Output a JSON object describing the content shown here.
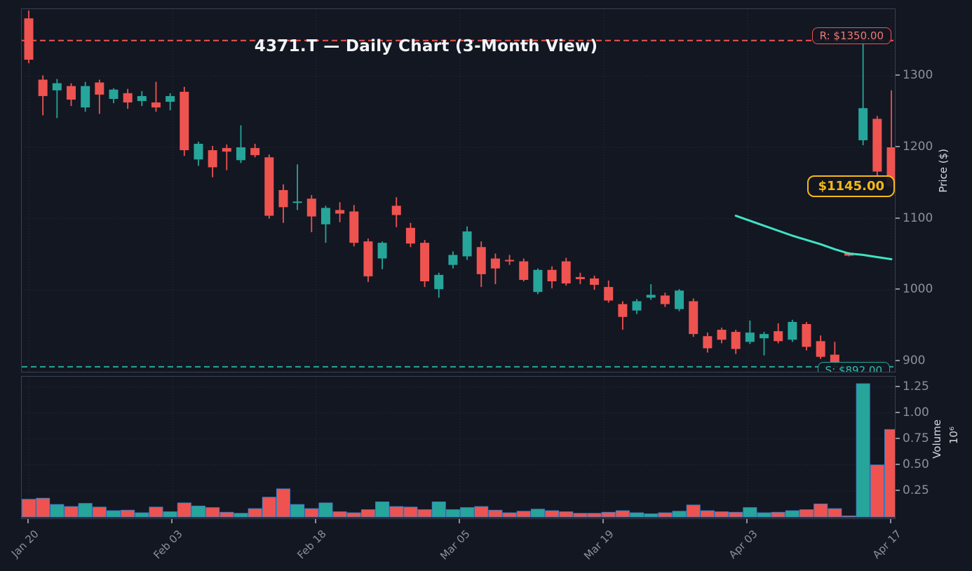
{
  "title": "4371.T — Daily Chart (3-Month View)",
  "colors": {
    "background": "#131722",
    "up_candle": "#26a69a",
    "down_candle": "#ef5350",
    "ma_line": "#3fe3c5",
    "resistance": "#ef5350",
    "support": "#26a69a",
    "last_price_accent": "#f4b916",
    "volume_bar_edge": "#3e7fc1",
    "grid": "#2a3040",
    "tick_text": "#8b9098"
  },
  "chart_data": {
    "type": "candlestick",
    "symbol": "4371.T",
    "title": "4371.T — Daily Chart (3-Month View)",
    "x_tick_labels": [
      "Jan 20",
      "Feb 03",
      "Feb 18",
      "Mar 05",
      "Mar 19",
      "Apr 03",
      "Apr 17"
    ],
    "price_axis": {
      "label": "Price ($)",
      "ticks": [
        900,
        1000,
        1100,
        1200,
        1300
      ],
      "range": [
        885,
        1394
      ]
    },
    "volume_axis": {
      "label": "Volume",
      "multiplier": "10⁶",
      "ticks": [
        0.25,
        0.5,
        0.75,
        1.0,
        1.25
      ],
      "range": [
        0,
        1.36
      ]
    },
    "resistance": {
      "label": "R: $1350.00",
      "price": 1350
    },
    "support": {
      "label": "S: $892.00",
      "price": 892
    },
    "last_price_label": {
      "text": "$1145.00",
      "price": 1145
    },
    "ma_line": {
      "start_index": 50,
      "prices": [
        1104,
        1097,
        1090,
        1083,
        1076,
        1070,
        1064,
        1057,
        1051,
        1049,
        1046,
        1043
      ]
    },
    "candle_columns": [
      "open",
      "high",
      "low",
      "close",
      "volume_millions"
    ],
    "candles": [
      [
        1381,
        1392,
        1318,
        1323,
        0.17
      ],
      [
        1295,
        1301,
        1245,
        1272,
        0.18
      ],
      [
        1280,
        1296,
        1241,
        1290,
        0.12
      ],
      [
        1286,
        1290,
        1258,
        1267,
        0.1
      ],
      [
        1256,
        1292,
        1250,
        1286,
        0.13
      ],
      [
        1291,
        1295,
        1247,
        1274,
        0.095
      ],
      [
        1268,
        1283,
        1262,
        1281,
        0.06
      ],
      [
        1276,
        1282,
        1254,
        1263,
        0.065
      ],
      [
        1265,
        1279,
        1258,
        1272,
        0.04
      ],
      [
        1263,
        1292,
        1250,
        1256,
        0.095
      ],
      [
        1264,
        1276,
        1252,
        1272,
        0.05
      ],
      [
        1278,
        1285,
        1188,
        1196,
        0.135
      ],
      [
        1183,
        1208,
        1174,
        1205,
        0.105
      ],
      [
        1196,
        1202,
        1158,
        1172,
        0.09
      ],
      [
        1199,
        1204,
        1168,
        1194,
        0.045
      ],
      [
        1182,
        1231,
        1178,
        1200,
        0.035
      ],
      [
        1199,
        1205,
        1186,
        1189,
        0.08
      ],
      [
        1186,
        1190,
        1100,
        1104,
        0.19
      ],
      [
        1140,
        1148,
        1094,
        1116,
        0.27
      ],
      [
        1122,
        1176,
        1112,
        1124,
        0.12
      ],
      [
        1128,
        1133,
        1081,
        1103,
        0.08
      ],
      [
        1092,
        1118,
        1066,
        1115,
        0.135
      ],
      [
        1112,
        1123,
        1095,
        1107,
        0.05
      ],
      [
        1110,
        1119,
        1061,
        1066,
        0.04
      ],
      [
        1068,
        1072,
        1011,
        1019,
        0.07
      ],
      [
        1044,
        1068,
        1029,
        1066,
        0.145
      ],
      [
        1118,
        1130,
        1088,
        1105,
        0.1
      ],
      [
        1087,
        1094,
        1060,
        1065,
        0.095
      ],
      [
        1066,
        1070,
        1004,
        1012,
        0.07
      ],
      [
        1001,
        1024,
        989,
        1021,
        0.145
      ],
      [
        1035,
        1054,
        1030,
        1049,
        0.07
      ],
      [
        1047,
        1089,
        1042,
        1082,
        0.09
      ],
      [
        1060,
        1068,
        1004,
        1022,
        0.1
      ],
      [
        1044,
        1051,
        1008,
        1030,
        0.065
      ],
      [
        1042,
        1049,
        1035,
        1040,
        0.04
      ],
      [
        1040,
        1044,
        1012,
        1014,
        0.055
      ],
      [
        997,
        1030,
        994,
        1028,
        0.075
      ],
      [
        1028,
        1033,
        1002,
        1012,
        0.06
      ],
      [
        1040,
        1045,
        1006,
        1009,
        0.05
      ],
      [
        1018,
        1024,
        1008,
        1015,
        0.035
      ],
      [
        1016,
        1020,
        1000,
        1007,
        0.035
      ],
      [
        1004,
        1013,
        982,
        985,
        0.045
      ],
      [
        980,
        984,
        944,
        962,
        0.06
      ],
      [
        971,
        987,
        966,
        984,
        0.04
      ],
      [
        989,
        1008,
        986,
        993,
        0.03
      ],
      [
        992,
        996,
        976,
        980,
        0.04
      ],
      [
        973,
        1001,
        970,
        999,
        0.055
      ],
      [
        984,
        988,
        934,
        938,
        0.115
      ],
      [
        935,
        940,
        912,
        918,
        0.06
      ],
      [
        944,
        947,
        925,
        930,
        0.05
      ],
      [
        941,
        944,
        910,
        917,
        0.045
      ],
      [
        927,
        957,
        924,
        940,
        0.09
      ],
      [
        932,
        941,
        908,
        938,
        0.04
      ],
      [
        942,
        953,
        925,
        928,
        0.045
      ],
      [
        930,
        958,
        927,
        955,
        0.06
      ],
      [
        952,
        955,
        915,
        920,
        0.07
      ],
      [
        928,
        936,
        903,
        906,
        0.125
      ],
      [
        909,
        927,
        893,
        898,
        0.08
      ],
      [
        1052,
        1053,
        1047,
        1048,
        0.01
      ],
      [
        1210,
        1350,
        1203,
        1255,
        1.28
      ],
      [
        1240,
        1244,
        1160,
        1166,
        0.5
      ],
      [
        1200,
        1280,
        1145,
        1145,
        0.84
      ]
    ]
  }
}
